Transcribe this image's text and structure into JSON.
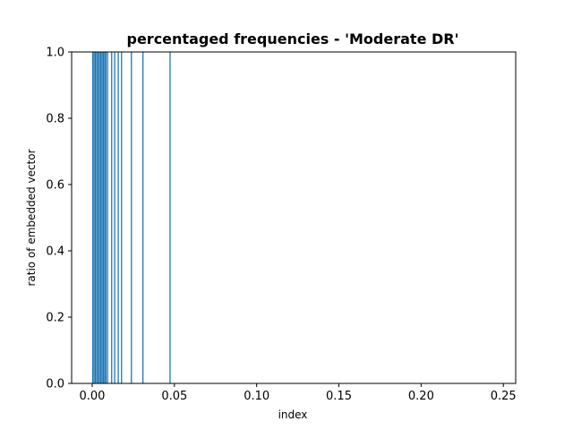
{
  "chart_data": {
    "type": "bar",
    "title": "percentaged frequencies - 'Moderate DR'",
    "xlabel": "index",
    "ylabel": "ratio of embedded vector",
    "xlim": [
      -0.0125,
      0.2575
    ],
    "ylim": [
      0,
      1.0
    ],
    "xticks": [
      0.0,
      0.05,
      0.1,
      0.15,
      0.2,
      0.25
    ],
    "xtick_labels": [
      "0.00",
      "0.05",
      "0.10",
      "0.15",
      "0.20",
      "0.25"
    ],
    "yticks": [
      0.0,
      0.2,
      0.4,
      0.6,
      0.8,
      1.0
    ],
    "ytick_labels": [
      "0.0",
      "0.2",
      "0.4",
      "0.6",
      "0.8",
      "1.0"
    ],
    "bar_color": "#1f77b4",
    "series": [
      {
        "x": [
          0.0,
          0.0008,
          0.0016,
          0.0024,
          0.0032,
          0.004,
          0.0048,
          0.0056,
          0.0064,
          0.0072,
          0.008,
          0.009,
          0.0115,
          0.0133,
          0.0155,
          0.0175,
          0.0235,
          0.0305,
          0.047
        ],
        "values": [
          1,
          1,
          1,
          1,
          1,
          1,
          1,
          1,
          1,
          1,
          1,
          1,
          1,
          1,
          1,
          1,
          1,
          1,
          1
        ]
      }
    ]
  }
}
